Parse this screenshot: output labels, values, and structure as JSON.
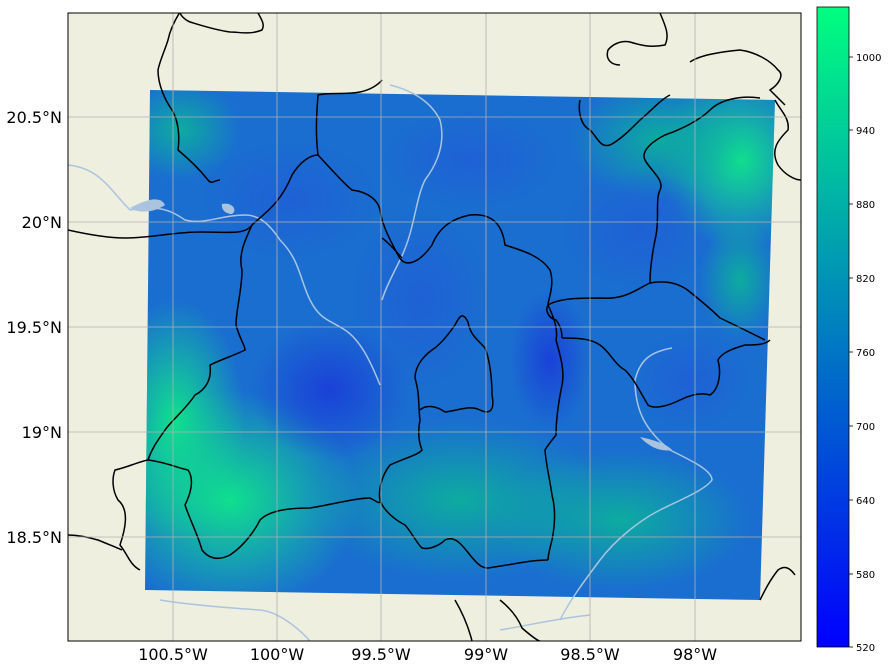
{
  "map": {
    "lon_ticks": [
      "100.5°W",
      "100°W",
      "99.5°W",
      "99°W",
      "98.5°W",
      "98°W"
    ],
    "lat_ticks": [
      "20.5°N",
      "20°N",
      "19.5°N",
      "19°N",
      "18.5°N"
    ],
    "extent": {
      "lon_min": -101.0,
      "lon_max": -97.5,
      "lat_min": 18.0,
      "lat_max": 21.0
    },
    "land_color": "#efefdf",
    "river_color": "#aac4e0",
    "border_color": "#000000",
    "gridlines": true
  },
  "colorbar": {
    "ticks": [
      "1000",
      "940",
      "880",
      "820",
      "760",
      "700",
      "640",
      "580",
      "520"
    ],
    "min": 520,
    "max": 1040,
    "colormap": "winter",
    "color_low": "#0000ff",
    "color_high": "#00ff80"
  }
}
